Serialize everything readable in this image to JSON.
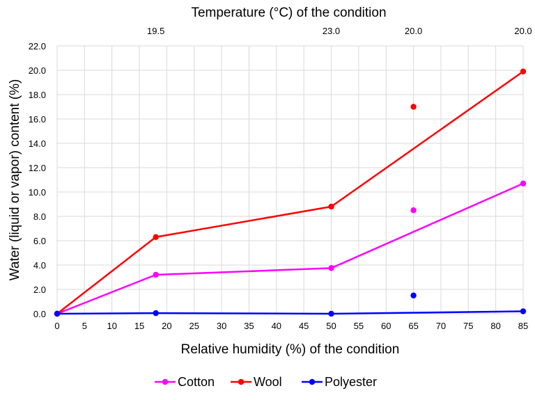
{
  "chart_data": {
    "type": "line",
    "xlabel": "Relative humidity (%) of the condition",
    "ylabel": "Water (liquid or vapor) content (%)",
    "x2label": "Temperature (°C) of the condition",
    "xlim": [
      0,
      85
    ],
    "ylim": [
      0,
      22
    ],
    "x_ticks": [
      0,
      5,
      10,
      15,
      20,
      25,
      30,
      35,
      40,
      45,
      50,
      55,
      60,
      65,
      70,
      75,
      80,
      85
    ],
    "y_ticks": [
      "0.0",
      "2.0",
      "4.0",
      "6.0",
      "8.0",
      "10.0",
      "12.0",
      "14.0",
      "16.0",
      "18.0",
      "20.0",
      "22.0"
    ],
    "top_ticks": [
      {
        "x": 18,
        "label": "19.5"
      },
      {
        "x": 50,
        "label": "23.0"
      },
      {
        "x": 65,
        "label": "20.0"
      },
      {
        "x": 85,
        "label": "20.0"
      }
    ],
    "grid": true,
    "legend_position": "bottom",
    "series": [
      {
        "name": "Cotton",
        "color": "#ff00ff",
        "x": [
          0,
          18,
          50,
          85
        ],
        "y": [
          0.0,
          3.2,
          3.75,
          10.7
        ],
        "extra_points": [
          {
            "x": 65,
            "y": 8.5
          }
        ]
      },
      {
        "name": "Wool",
        "color": "#ff0000",
        "x": [
          0,
          18,
          50,
          85
        ],
        "y": [
          0.0,
          6.3,
          8.8,
          19.9
        ],
        "extra_points": [
          {
            "x": 65,
            "y": 17.0
          }
        ]
      },
      {
        "name": "Polyester",
        "color": "#0000ff",
        "x": [
          0,
          18,
          50,
          85
        ],
        "y": [
          0.0,
          0.05,
          0.0,
          0.2
        ],
        "extra_points": [
          {
            "x": 65,
            "y": 1.5
          }
        ]
      }
    ]
  }
}
